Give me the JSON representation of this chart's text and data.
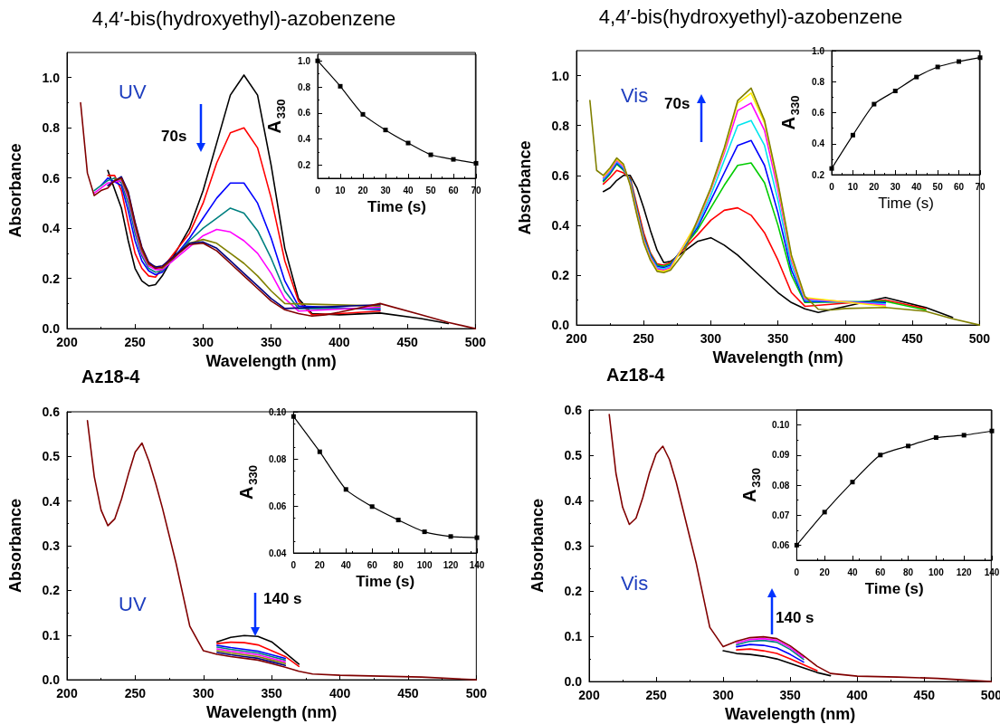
{
  "chart_data": [
    {
      "type": "line",
      "title": "4,4′-bis(hydroxyethyl)-azobenzene",
      "xlabel": "Wavelength (nm)",
      "ylabel": "Absorbance",
      "marker": "none",
      "annotations": [
        "UV",
        "70s"
      ],
      "x": [
        210,
        215,
        220,
        225,
        230,
        235,
        240,
        245,
        250,
        255,
        260,
        265,
        270,
        280,
        290,
        300,
        310,
        320,
        330,
        340,
        350,
        360,
        370,
        380,
        390,
        400,
        430,
        460,
        480,
        500
      ],
      "xlim": [
        200,
        500
      ],
      "xticks": [
        200,
        250,
        300,
        350,
        400,
        450,
        500
      ],
      "ylim": [
        0,
        1.1
      ],
      "yticks": [
        {
          "value": 0,
          "label": "0.0"
        },
        0.2,
        0.4,
        0.6,
        0.8,
        {
          "value": 1,
          "label": "1.0"
        }
      ],
      "series": [
        {
          "color": "#000000",
          "x": [
            230,
            240,
            245,
            250,
            255,
            260,
            265,
            270,
            290,
            300,
            310,
            320,
            330,
            340,
            350,
            360,
            370,
            380,
            400,
            430,
            460,
            480
          ],
          "values": [
            0.63,
            0.48,
            0.35,
            0.24,
            0.19,
            0.17,
            0.175,
            0.21,
            0.4,
            0.55,
            0.74,
            0.93,
            1.01,
            0.93,
            0.65,
            0.32,
            0.12,
            0.06,
            0.055,
            0.062,
            0.04,
            0.02
          ]
        },
        {
          "color": "#ff0000",
          "x": [
            230,
            235,
            240,
            245,
            250,
            255,
            260,
            265,
            290,
            300,
            310,
            320,
            330,
            340,
            350,
            360,
            370,
            380,
            400,
            430
          ],
          "values": [
            0.61,
            0.61,
            0.55,
            0.42,
            0.3,
            0.24,
            0.21,
            0.205,
            0.38,
            0.5,
            0.66,
            0.78,
            0.8,
            0.72,
            0.52,
            0.27,
            0.11,
            0.055,
            0.06,
            0.07
          ]
        },
        {
          "color": "#0000ff",
          "x": [
            225,
            230,
            240,
            245,
            250,
            255,
            260,
            265,
            270,
            290,
            300,
            310,
            320,
            330,
            340,
            350,
            360,
            370,
            430
          ],
          "values": [
            0.57,
            0.6,
            0.57,
            0.47,
            0.35,
            0.27,
            0.23,
            0.215,
            0.225,
            0.36,
            0.44,
            0.52,
            0.58,
            0.58,
            0.5,
            0.36,
            0.19,
            0.09,
            0.075
          ]
        },
        {
          "color": "#008080",
          "x": [
            220,
            230,
            235,
            240,
            245,
            250,
            255,
            260,
            265,
            270,
            290,
            300,
            310,
            320,
            330,
            340,
            350,
            360,
            370,
            430
          ],
          "values": [
            0.55,
            0.59,
            0.6,
            0.58,
            0.5,
            0.38,
            0.29,
            0.24,
            0.225,
            0.23,
            0.35,
            0.4,
            0.44,
            0.48,
            0.46,
            0.39,
            0.28,
            0.15,
            0.08,
            0.08
          ]
        },
        {
          "color": "#ff00ff",
          "x": [
            220,
            225,
            230,
            240,
            245,
            250,
            255,
            260,
            265,
            270,
            300,
            310,
            320,
            330,
            340,
            350,
            360,
            370,
            430
          ],
          "values": [
            0.54,
            0.56,
            0.58,
            0.59,
            0.52,
            0.4,
            0.3,
            0.25,
            0.235,
            0.235,
            0.37,
            0.395,
            0.385,
            0.35,
            0.3,
            0.22,
            0.12,
            0.07,
            0.085
          ]
        },
        {
          "color": "#808000",
          "x": [
            235,
            240,
            245,
            250,
            255,
            260,
            270,
            290,
            300,
            310,
            320,
            330,
            340,
            350,
            360,
            430
          ],
          "values": [
            0.595,
            0.595,
            0.53,
            0.41,
            0.31,
            0.255,
            0.24,
            0.34,
            0.355,
            0.34,
            0.3,
            0.26,
            0.21,
            0.15,
            0.1,
            0.09
          ]
        },
        {
          "color": "#000080",
          "x": [
            230,
            240,
            245,
            250,
            255,
            260,
            265,
            270,
            290,
            300,
            310,
            320,
            330,
            340,
            350,
            360,
            430
          ],
          "values": [
            0.57,
            0.605,
            0.545,
            0.425,
            0.325,
            0.265,
            0.245,
            0.25,
            0.34,
            0.345,
            0.32,
            0.27,
            0.22,
            0.17,
            0.12,
            0.08,
            0.095
          ]
        },
        {
          "color": "#800000",
          "values": [
            0.9,
            0.62,
            0.53,
            0.55,
            0.56,
            0.59,
            0.6,
            0.54,
            0.42,
            0.32,
            0.26,
            0.24,
            0.245,
            0.29,
            0.335,
            0.34,
            0.31,
            0.26,
            0.21,
            0.16,
            0.11,
            0.075,
            0.06,
            0.05,
            0.055,
            0.065,
            0.1,
            0.055,
            0.025,
            0
          ]
        }
      ]
    },
    {
      "type": "line",
      "xlabel": "Time (s)",
      "ylabel": "A$_{330}$",
      "marker": "square",
      "color": "#000000",
      "x": [
        0,
        10,
        20,
        30,
        40,
        50,
        60,
        70
      ],
      "values": [
        1.0,
        0.805,
        0.59,
        0.47,
        0.37,
        0.28,
        0.245,
        0.215
      ],
      "xlim": [
        0,
        70
      ],
      "xticks": [
        0,
        10,
        20,
        30,
        40,
        50,
        60,
        70
      ],
      "ylim": [
        0.1,
        1.05
      ],
      "yticks": [
        0.2,
        0.4,
        0.6,
        0.8,
        {
          "value": 1,
          "label": "1.0"
        }
      ]
    },
    {
      "type": "line",
      "title": "4,4′-bis(hydroxyethyl)-azobenzene",
      "xlabel": "Wavelength (nm)",
      "ylabel": "Absorbance",
      "marker": "none",
      "annotations": [
        "Vis",
        "70s"
      ],
      "x": [
        210,
        215,
        220,
        225,
        230,
        235,
        240,
        245,
        250,
        255,
        260,
        265,
        270,
        280,
        290,
        300,
        310,
        320,
        330,
        340,
        350,
        360,
        370,
        380,
        390,
        400,
        430,
        460,
        480,
        500
      ],
      "xlim": [
        200,
        500
      ],
      "xticks": [
        200,
        250,
        300,
        350,
        400,
        450,
        500
      ],
      "ylim": [
        0,
        1.1
      ],
      "yticks": [
        {
          "value": 0,
          "label": "0.0"
        },
        0.2,
        0.4,
        0.6,
        0.8,
        {
          "value": 1,
          "label": "1.0"
        }
      ],
      "series": [
        {
          "color": "#000000",
          "x": [
            220,
            225,
            230,
            235,
            240,
            245,
            250,
            255,
            260,
            265,
            270,
            290,
            300,
            310,
            320,
            330,
            340,
            350,
            360,
            370,
            380,
            430,
            460,
            480
          ],
          "values": [
            0.535,
            0.55,
            0.58,
            0.6,
            0.6,
            0.55,
            0.47,
            0.38,
            0.3,
            0.25,
            0.255,
            0.335,
            0.35,
            0.32,
            0.28,
            0.23,
            0.18,
            0.13,
            0.09,
            0.065,
            0.05,
            0.11,
            0.07,
            0.03
          ]
        },
        {
          "color": "#ff0000",
          "x": [
            220,
            225,
            230,
            235,
            240,
            245,
            250,
            255,
            260,
            265,
            270,
            290,
            300,
            310,
            320,
            330,
            340,
            350,
            360,
            370,
            430,
            460
          ],
          "values": [
            0.565,
            0.59,
            0.62,
            0.61,
            0.59,
            0.48,
            0.37,
            0.29,
            0.245,
            0.24,
            0.25,
            0.36,
            0.42,
            0.46,
            0.47,
            0.44,
            0.37,
            0.26,
            0.13,
            0.075,
            0.1,
            0.065
          ]
        },
        {
          "color": "#00cc00",
          "x": [
            220,
            225,
            230,
            235,
            240,
            245,
            250,
            255,
            260,
            265,
            270,
            290,
            300,
            310,
            320,
            330,
            340,
            350,
            360,
            370,
            430,
            460
          ],
          "values": [
            0.575,
            0.605,
            0.645,
            0.62,
            0.585,
            0.465,
            0.355,
            0.285,
            0.24,
            0.235,
            0.245,
            0.38,
            0.47,
            0.56,
            0.64,
            0.65,
            0.57,
            0.4,
            0.2,
            0.09,
            0.095,
            0.06
          ]
        },
        {
          "color": "#0000ff",
          "x": [
            220,
            225,
            230,
            235,
            240,
            245,
            250,
            255,
            260,
            265,
            270,
            290,
            300,
            310,
            320,
            330,
            340,
            350,
            360,
            370,
            430
          ],
          "values": [
            0.58,
            0.61,
            0.65,
            0.625,
            0.58,
            0.46,
            0.35,
            0.28,
            0.235,
            0.23,
            0.24,
            0.39,
            0.5,
            0.61,
            0.72,
            0.74,
            0.64,
            0.45,
            0.22,
            0.095,
            0.09
          ]
        },
        {
          "color": "#00e5ee",
          "x": [
            220,
            225,
            230,
            235,
            240,
            245,
            250,
            255,
            260,
            265,
            270,
            290,
            300,
            310,
            320,
            330,
            340,
            350,
            360,
            370,
            430
          ],
          "values": [
            0.585,
            0.615,
            0.655,
            0.63,
            0.575,
            0.455,
            0.345,
            0.275,
            0.23,
            0.225,
            0.235,
            0.4,
            0.52,
            0.66,
            0.8,
            0.82,
            0.72,
            0.5,
            0.24,
            0.1,
            0.085
          ]
        },
        {
          "color": "#ff00ff",
          "x": [
            220,
            225,
            230,
            235,
            240,
            245,
            250,
            255,
            260,
            265,
            270,
            290,
            300,
            310,
            320,
            330,
            340,
            350,
            360,
            370,
            430
          ],
          "values": [
            0.59,
            0.62,
            0.66,
            0.635,
            0.57,
            0.45,
            0.34,
            0.27,
            0.225,
            0.22,
            0.23,
            0.41,
            0.54,
            0.69,
            0.86,
            0.89,
            0.78,
            0.54,
            0.26,
            0.105,
            0.08
          ]
        },
        {
          "color": "#ffee00",
          "x": [
            220,
            225,
            230,
            235,
            240,
            245,
            250,
            255,
            260,
            265,
            270,
            290,
            300,
            310,
            320,
            330,
            340,
            350,
            360,
            370,
            430
          ],
          "values": [
            0.595,
            0.625,
            0.665,
            0.64,
            0.565,
            0.445,
            0.335,
            0.265,
            0.22,
            0.215,
            0.225,
            0.415,
            0.545,
            0.7,
            0.89,
            0.93,
            0.81,
            0.56,
            0.27,
            0.11,
            0.075
          ]
        },
        {
          "color": "#808000",
          "values": [
            0.9,
            0.62,
            0.6,
            0.63,
            0.67,
            0.645,
            0.56,
            0.44,
            0.33,
            0.26,
            0.215,
            0.21,
            0.22,
            0.29,
            0.42,
            0.55,
            0.71,
            0.9,
            0.95,
            0.82,
            0.57,
            0.28,
            0.115,
            0.063,
            0.06,
            0.066,
            0.07,
            0.055,
            0.025,
            0
          ]
        }
      ]
    },
    {
      "type": "line",
      "xlabel": "Time (s)",
      "ylabel": "A$_{330}$",
      "marker": "square",
      "color": "#000000",
      "x": [
        0,
        10,
        20,
        30,
        40,
        50,
        60,
        70
      ],
      "values": [
        0.24,
        0.455,
        0.655,
        0.74,
        0.83,
        0.895,
        0.93,
        0.955
      ],
      "xlim": [
        0,
        70
      ],
      "xticks": [
        0,
        10,
        20,
        30,
        40,
        50,
        60,
        70
      ],
      "ylim": [
        0.2,
        1.0
      ],
      "yticks": [
        0.2,
        0.4,
        0.6,
        0.8,
        {
          "value": 1,
          "label": "1.0"
        }
      ]
    },
    {
      "type": "line",
      "title": "Az18-4",
      "xlabel": "Wavelength (nm)",
      "ylabel": "Absorbance",
      "marker": "none",
      "annotations": [
        "UV",
        "140 s"
      ],
      "x": [
        215,
        220,
        225,
        230,
        235,
        240,
        245,
        250,
        255,
        260,
        265,
        270,
        280,
        290,
        300,
        310,
        320,
        330,
        340,
        350,
        360,
        370,
        380,
        400,
        430,
        460,
        500
      ],
      "xlim": [
        200,
        500
      ],
      "xticks": [
        200,
        250,
        300,
        350,
        400,
        450,
        500
      ],
      "ylim": [
        0,
        0.6
      ],
      "yticks": [
        {
          "value": 0,
          "label": "0.0"
        },
        0.1,
        0.2,
        0.3,
        0.4,
        0.5,
        0.6
      ],
      "series": [
        {
          "color": "#000000",
          "x": [
            310,
            320,
            330,
            340,
            350,
            360,
            370
          ],
          "values": [
            0.085,
            0.095,
            0.099,
            0.097,
            0.085,
            0.06,
            0.035
          ]
        },
        {
          "color": "#ff0000",
          "x": [
            310,
            320,
            330,
            340,
            350,
            360,
            370
          ],
          "values": [
            0.081,
            0.084,
            0.083,
            0.078,
            0.065,
            0.052,
            0.03
          ]
        },
        {
          "color": "#0000ff",
          "x": [
            310,
            320,
            330,
            340,
            350,
            360
          ],
          "values": [
            0.077,
            0.072,
            0.068,
            0.064,
            0.056,
            0.048
          ]
        },
        {
          "color": "#008080",
          "x": [
            310,
            320,
            330,
            340,
            350,
            360
          ],
          "values": [
            0.073,
            0.068,
            0.064,
            0.06,
            0.052,
            0.044
          ]
        },
        {
          "color": "#ff00ff",
          "x": [
            310,
            320,
            330,
            340,
            350,
            360
          ],
          "values": [
            0.069,
            0.064,
            0.06,
            0.056,
            0.048,
            0.04
          ]
        },
        {
          "color": "#808000",
          "x": [
            310,
            320,
            330,
            340,
            350,
            360
          ],
          "values": [
            0.065,
            0.06,
            0.056,
            0.052,
            0.044,
            0.036
          ]
        },
        {
          "color": "#000080",
          "x": [
            310,
            320,
            330,
            340,
            350,
            360
          ],
          "values": [
            0.061,
            0.056,
            0.052,
            0.048,
            0.04,
            0.032
          ]
        },
        {
          "color": "#800000",
          "values": [
            0.58,
            0.455,
            0.38,
            0.345,
            0.36,
            0.405,
            0.46,
            0.51,
            0.53,
            0.49,
            0.44,
            0.384,
            0.26,
            0.12,
            0.065,
            0.057,
            0.052,
            0.048,
            0.044,
            0.036,
            0.028,
            0.019,
            0.013,
            0.01,
            0.008,
            0.006,
            0
          ]
        }
      ]
    },
    {
      "type": "line",
      "xlabel": "Time (s)",
      "ylabel": "A$_{330}$",
      "marker": "square",
      "color": "#000000",
      "x": [
        0,
        20,
        40,
        60,
        80,
        100,
        120,
        140
      ],
      "values": [
        0.098,
        0.083,
        0.067,
        0.0597,
        0.054,
        0.049,
        0.047,
        0.0465
      ],
      "xlim": [
        0,
        140
      ],
      "xticks": [
        0,
        20,
        40,
        60,
        80,
        100,
        120,
        140
      ],
      "ylim": [
        0.04,
        0.1
      ],
      "yticks": [
        0.04,
        0.06,
        0.08,
        {
          "value": 0.1,
          "label": "0.10"
        }
      ]
    },
    {
      "type": "line",
      "title": "Az18-4",
      "xlabel": "Wavelength (nm)",
      "ylabel": "Absorbance",
      "marker": "none",
      "annotations": [
        "Vis",
        "140 s"
      ],
      "x": [
        215,
        220,
        225,
        230,
        235,
        240,
        245,
        250,
        255,
        260,
        265,
        270,
        280,
        290,
        300,
        310,
        320,
        330,
        340,
        350,
        360,
        370,
        380,
        400,
        430,
        460,
        500
      ],
      "xlim": [
        200,
        500
      ],
      "xticks": [
        200,
        250,
        300,
        350,
        400,
        450,
        500
      ],
      "ylim": [
        0,
        0.6
      ],
      "yticks": [
        {
          "value": 0,
          "label": "0.0"
        },
        0.1,
        0.2,
        0.3,
        0.4,
        0.5,
        0.6
      ],
      "series": [
        {
          "color": "#000000",
          "x": [
            300,
            310,
            320,
            330,
            340,
            350,
            360,
            370,
            380
          ],
          "values": [
            0.068,
            0.062,
            0.06,
            0.056,
            0.05,
            0.04,
            0.03,
            0.02,
            0.013
          ]
        },
        {
          "color": "#ff0000",
          "x": [
            310,
            320,
            330,
            340,
            350,
            360,
            370
          ],
          "values": [
            0.07,
            0.072,
            0.068,
            0.062,
            0.05,
            0.037,
            0.024
          ]
        },
        {
          "color": "#0000ff",
          "x": [
            310,
            320,
            330,
            340,
            350,
            360
          ],
          "values": [
            0.077,
            0.082,
            0.08,
            0.074,
            0.06,
            0.043
          ]
        },
        {
          "color": "#008080",
          "x": [
            310,
            320,
            330,
            340,
            350,
            360
          ],
          "values": [
            0.081,
            0.089,
            0.091,
            0.087,
            0.071,
            0.049
          ]
        },
        {
          "color": "#ff00ff",
          "x": [
            310,
            320,
            330,
            340,
            350,
            360
          ],
          "values": [
            0.085,
            0.093,
            0.095,
            0.091,
            0.075,
            0.053
          ]
        },
        {
          "color": "#800000",
          "values": [
            0.59,
            0.46,
            0.385,
            0.347,
            0.361,
            0.406,
            0.461,
            0.503,
            0.52,
            0.49,
            0.44,
            0.38,
            0.26,
            0.12,
            0.077,
            0.089,
            0.097,
            0.099,
            0.095,
            0.079,
            0.057,
            0.034,
            0.018,
            0.012,
            0.01,
            0.007,
            0
          ]
        }
      ]
    },
    {
      "type": "line",
      "xlabel": "Time (s)",
      "ylabel": "A$_{330}$",
      "marker": "square",
      "color": "#000000",
      "x": [
        0,
        20,
        40,
        60,
        80,
        100,
        120,
        140
      ],
      "values": [
        0.06,
        0.071,
        0.081,
        0.09,
        0.093,
        0.0958,
        0.0966,
        0.098
      ],
      "xlim": [
        0,
        140
      ],
      "xticks": [
        0,
        20,
        40,
        60,
        80,
        100,
        120,
        140
      ],
      "ylim": [
        0.055,
        0.105
      ],
      "yticks": [
        {
          "value": 0.06,
          "label": "0.06"
        },
        {
          "value": 0.07,
          "label": "0.07"
        },
        {
          "value": 0.08,
          "label": "0.08"
        },
        {
          "value": 0.09,
          "label": "0.09"
        },
        {
          "value": 0.1,
          "label": "0.10"
        }
      ]
    }
  ]
}
